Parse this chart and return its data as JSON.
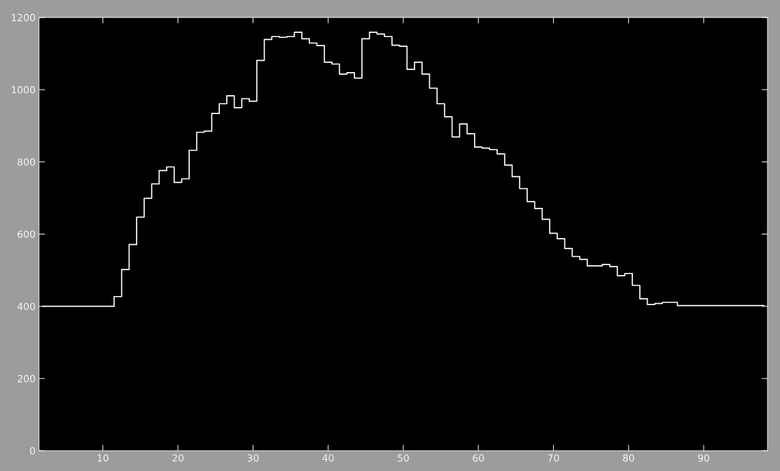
{
  "chart_data": {
    "type": "step",
    "xlim": [
      1.5,
      98.5
    ],
    "ylim": [
      0,
      1200
    ],
    "xticks": [
      10,
      20,
      30,
      40,
      50,
      60,
      70,
      80,
      90
    ],
    "yticks": [
      0,
      200,
      400,
      600,
      800,
      1000,
      1200
    ],
    "grid": false,
    "legend": false,
    "x": [
      2,
      3,
      4,
      5,
      6,
      7,
      8,
      9,
      10,
      11,
      12,
      13,
      14,
      15,
      16,
      17,
      18,
      19,
      20,
      21,
      22,
      23,
      24,
      25,
      26,
      27,
      28,
      29,
      30,
      31,
      32,
      33,
      34,
      35,
      36,
      37,
      38,
      39,
      40,
      41,
      42,
      43,
      44,
      45,
      46,
      47,
      48,
      49,
      50,
      51,
      52,
      53,
      54,
      55,
      56,
      57,
      58,
      59,
      60,
      61,
      62,
      63,
      64,
      65,
      66,
      67,
      68,
      69,
      70,
      71,
      72,
      73,
      74,
      75,
      76,
      77,
      78,
      79,
      80,
      81,
      82,
      83,
      84,
      85,
      86,
      87,
      88,
      89,
      90,
      91,
      92,
      93,
      94,
      95,
      96,
      97,
      98
    ],
    "series": [
      {
        "color": "#ffffff",
        "values": [
          400,
          400,
          400,
          400,
          400,
          400,
          400,
          400,
          400,
          400,
          427,
          502,
          571,
          647,
          699,
          739,
          776,
          786,
          743,
          753,
          832,
          882,
          885,
          934,
          961,
          983,
          950,
          975,
          968,
          1081,
          1139,
          1147,
          1145,
          1147,
          1159,
          1141,
          1129,
          1122,
          1076,
          1071,
          1043,
          1047,
          1032,
          1141,
          1159,
          1154,
          1147,
          1123,
          1120,
          1056,
          1076,
          1043,
          1004,
          961,
          925,
          869,
          905,
          878,
          841,
          838,
          834,
          822,
          791,
          759,
          726,
          690,
          671,
          641,
          602,
          587,
          560,
          538,
          530,
          512,
          512,
          516,
          510,
          485,
          491,
          458,
          421,
          405,
          408,
          411,
          411,
          402,
          402,
          402,
          402,
          402,
          402,
          402,
          402,
          402,
          402,
          402,
          402
        ]
      }
    ]
  }
}
